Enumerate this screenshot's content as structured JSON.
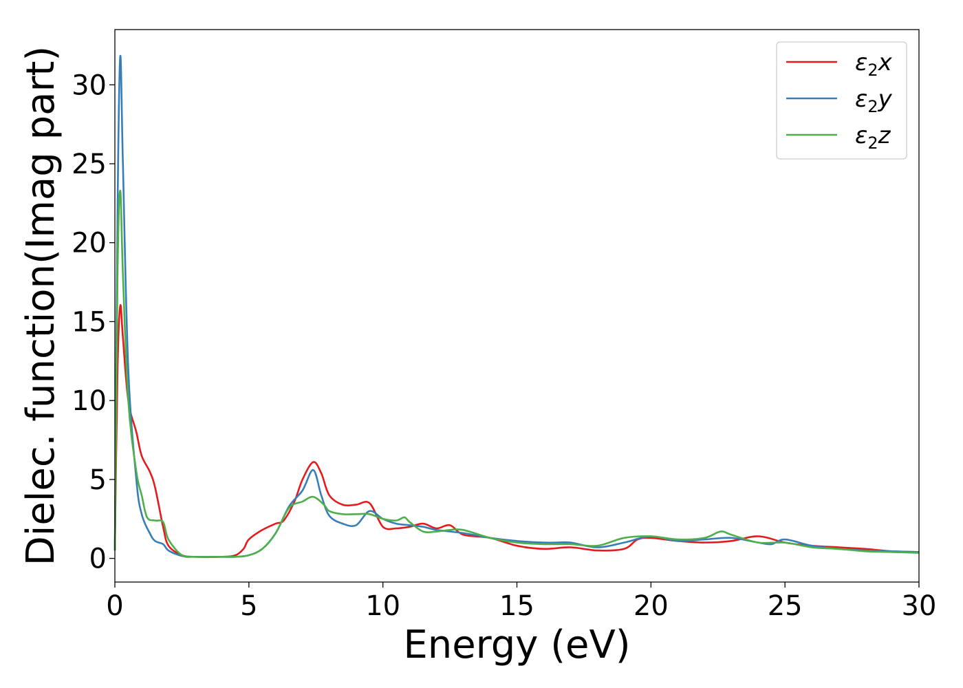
{
  "chart_data": {
    "type": "line",
    "title": "",
    "xlabel": "Energy (eV)",
    "ylabel": "Dielec. function(Imag part)",
    "xlim": [
      0,
      30
    ],
    "ylim": [
      -1.5,
      33.5
    ],
    "xticks": [
      0,
      5,
      10,
      15,
      20,
      25,
      30
    ],
    "yticks": [
      0,
      5,
      10,
      15,
      20,
      25,
      30
    ],
    "grid": false,
    "legend_position": "top-right",
    "series": [
      {
        "name": "ε₂x",
        "legend_main": "ε",
        "legend_sub": "2",
        "legend_tail": "x",
        "color": "#e41a1c",
        "x": [
          0,
          0.1,
          0.2,
          0.3,
          0.5,
          0.8,
          1.0,
          1.3,
          1.5,
          1.8,
          2.0,
          2.5,
          3.0,
          4.0,
          4.5,
          4.8,
          5.0,
          5.5,
          6.0,
          6.3,
          6.7,
          7.0,
          7.4,
          7.7,
          8.0,
          8.5,
          9.0,
          9.5,
          10.0,
          10.5,
          11.0,
          11.5,
          12.0,
          12.5,
          13.0,
          14.0,
          15.0,
          16.0,
          17.0,
          18.0,
          19.0,
          19.5,
          20.0,
          21.0,
          22.0,
          23.0,
          24.0,
          25.0,
          26.0,
          27.0,
          28.0,
          29.0,
          30.0
        ],
        "y": [
          0.5,
          12.0,
          16.0,
          14.0,
          10.0,
          8.0,
          6.5,
          5.5,
          4.5,
          2.0,
          0.8,
          0.2,
          0.1,
          0.1,
          0.2,
          0.6,
          1.2,
          1.8,
          2.2,
          2.4,
          3.6,
          5.0,
          6.1,
          5.4,
          4.0,
          3.4,
          3.4,
          3.5,
          2.0,
          1.9,
          2.0,
          2.2,
          1.9,
          2.1,
          1.5,
          1.3,
          0.8,
          0.6,
          0.7,
          0.5,
          0.6,
          1.2,
          1.3,
          1.1,
          1.0,
          1.1,
          1.4,
          1.0,
          0.8,
          0.7,
          0.6,
          0.45,
          0.4
        ]
      },
      {
        "name": "ε₂y",
        "legend_main": "ε",
        "legend_sub": "2",
        "legend_tail": "y",
        "color": "#377eb8",
        "x": [
          0,
          0.1,
          0.2,
          0.3,
          0.5,
          0.8,
          1.0,
          1.3,
          1.5,
          1.8,
          2.0,
          2.5,
          3.0,
          4.0,
          4.5,
          5.0,
          5.5,
          6.0,
          6.5,
          7.0,
          7.4,
          7.7,
          8.0,
          8.5,
          9.0,
          9.5,
          10.0,
          10.5,
          11.0,
          11.5,
          12.0,
          13.0,
          14.0,
          15.0,
          16.0,
          16.5,
          17.0,
          18.0,
          19.0,
          20.0,
          21.0,
          22.0,
          23.0,
          24.0,
          24.5,
          25.0,
          26.0,
          27.0,
          28.0,
          29.0,
          30.0
        ],
        "y": [
          0.5,
          22.0,
          31.8,
          25.0,
          12.0,
          5.0,
          2.8,
          1.6,
          1.1,
          0.9,
          0.5,
          0.15,
          0.1,
          0.1,
          0.1,
          0.2,
          0.6,
          1.6,
          3.3,
          4.3,
          5.6,
          4.0,
          2.7,
          2.2,
          2.1,
          3.0,
          2.5,
          2.2,
          2.1,
          2.0,
          1.8,
          1.6,
          1.3,
          1.1,
          1.0,
          1.0,
          1.0,
          0.7,
          1.0,
          1.4,
          1.1,
          1.2,
          1.3,
          1.0,
          0.9,
          1.2,
          0.8,
          0.6,
          0.5,
          0.45,
          0.4
        ]
      },
      {
        "name": "ε₂z",
        "legend_main": "ε",
        "legend_sub": "2",
        "legend_tail": "z",
        "color": "#4daf4a",
        "x": [
          0,
          0.1,
          0.2,
          0.3,
          0.5,
          0.8,
          1.0,
          1.2,
          1.5,
          1.8,
          2.0,
          2.5,
          3.0,
          4.0,
          4.5,
          5.0,
          5.5,
          6.0,
          6.5,
          7.0,
          7.4,
          7.8,
          8.0,
          8.5,
          9.0,
          9.5,
          10.0,
          10.5,
          10.8,
          11.0,
          11.5,
          12.0,
          12.5,
          13.0,
          14.0,
          15.0,
          16.0,
          17.0,
          18.0,
          19.0,
          20.0,
          21.0,
          22.0,
          22.6,
          23.0,
          24.0,
          25.0,
          26.0,
          27.0,
          28.0,
          29.0,
          30.0
        ],
        "y": [
          0.5,
          18.0,
          23.3,
          18.0,
          10.0,
          5.5,
          4.0,
          2.6,
          2.4,
          2.3,
          1.2,
          0.2,
          0.1,
          0.1,
          0.1,
          0.2,
          0.6,
          1.6,
          3.2,
          3.6,
          3.9,
          3.4,
          3.0,
          2.8,
          2.8,
          2.8,
          2.5,
          2.4,
          2.6,
          2.3,
          1.7,
          1.7,
          1.8,
          1.8,
          1.3,
          1.0,
          0.9,
          0.9,
          0.8,
          1.3,
          1.4,
          1.2,
          1.3,
          1.7,
          1.5,
          1.0,
          1.0,
          0.7,
          0.6,
          0.45,
          0.4,
          0.35
        ]
      }
    ]
  }
}
